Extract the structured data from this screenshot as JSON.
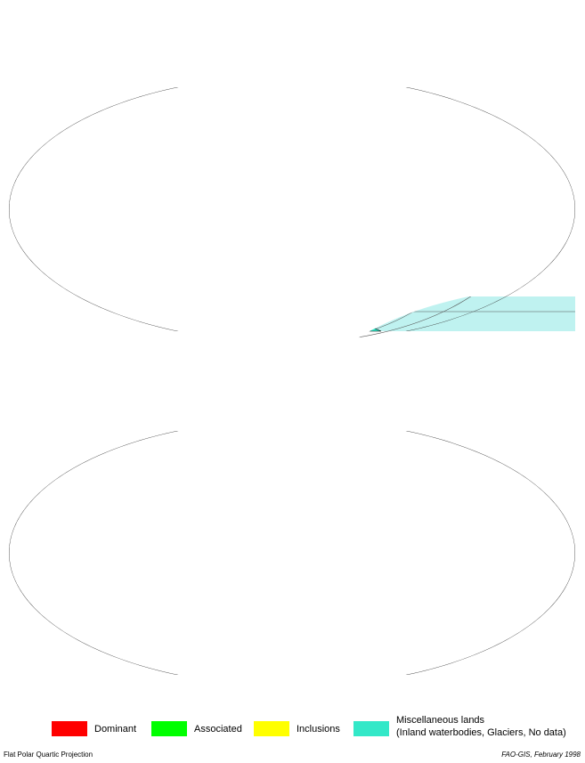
{
  "legend": [
    {
      "label": "Dominant",
      "color": "#ff0000"
    },
    {
      "label": "Associated",
      "color": "#00ff00"
    },
    {
      "label": "Inclusions",
      "color": "#ffff00"
    },
    {
      "label": "Miscellaneous lands",
      "sublabel": "(Inland waterbodies, Glaciers, No data)",
      "color": "#33e8c8"
    }
  ],
  "footer": {
    "projection": "Flat Polar Quartic Projection",
    "credit": "FAO-GIS, February 1998"
  }
}
